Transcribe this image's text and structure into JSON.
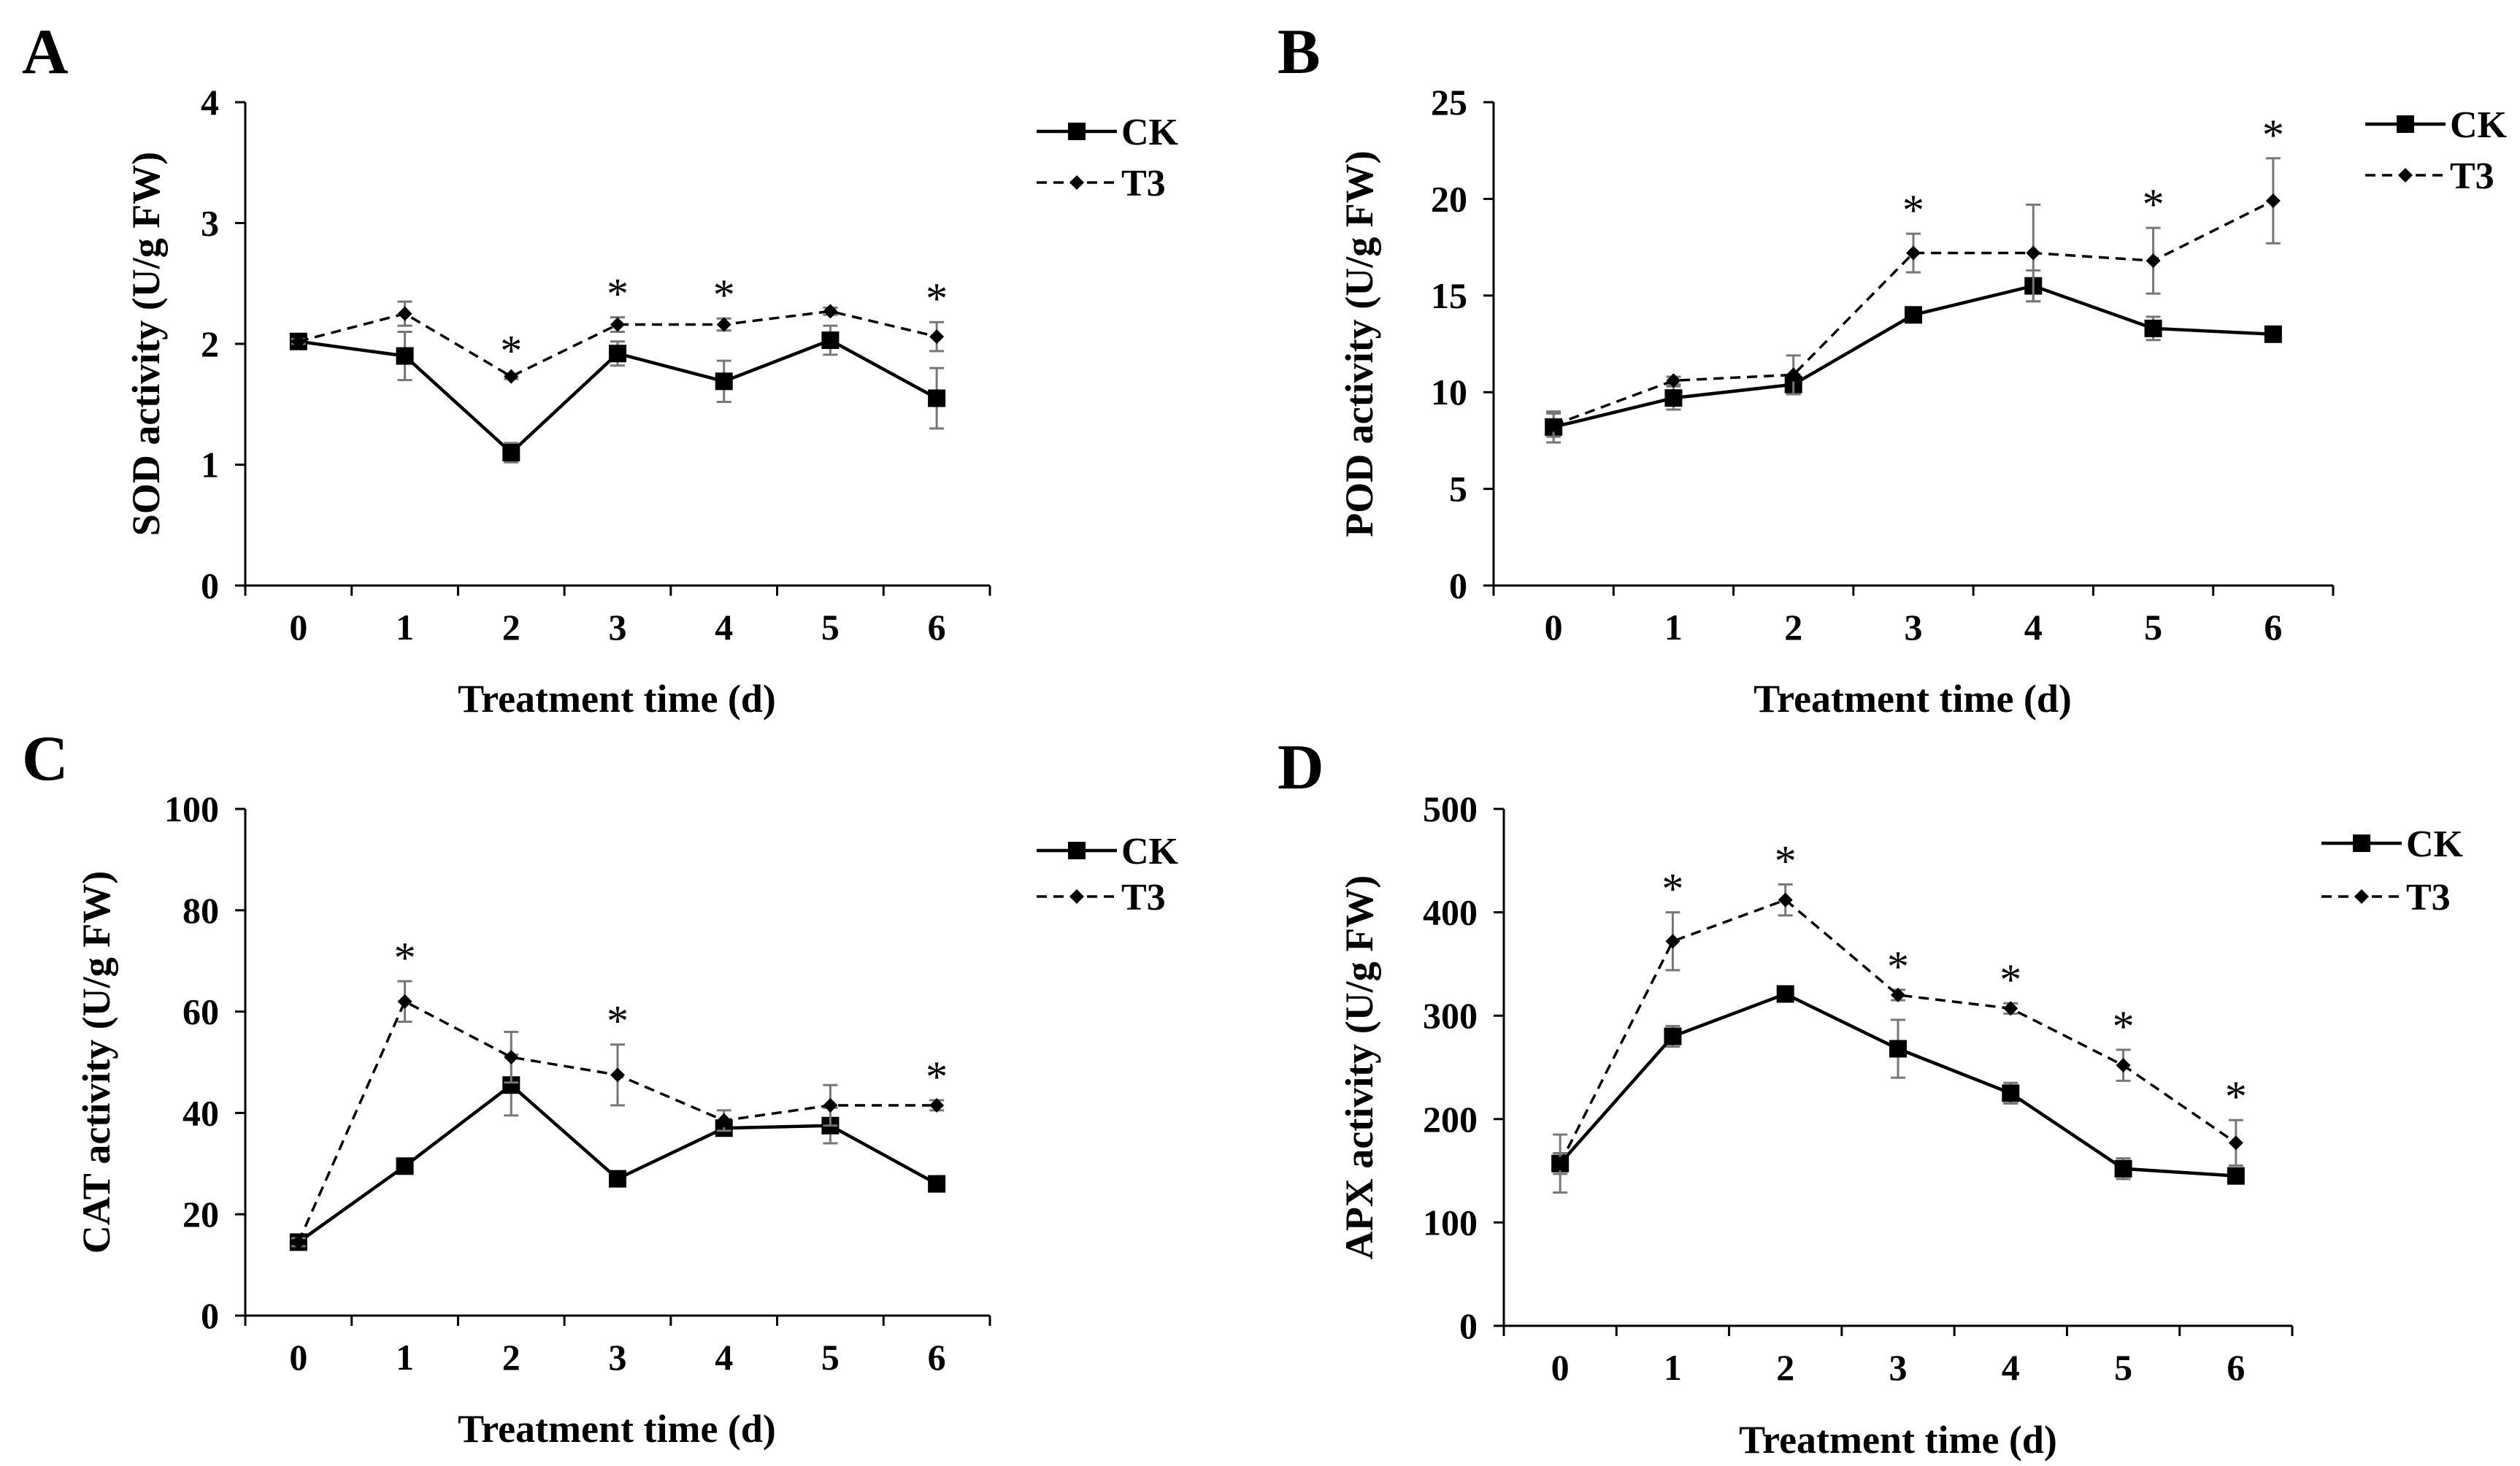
{
  "figure": {
    "x_axis_title": "Treatment time (d)",
    "legend": [
      "CK",
      "T3"
    ],
    "significance_mark": "*"
  },
  "chart_data": [
    {
      "type": "line",
      "panel_label": "A",
      "title": "",
      "xlabel": "Treatment time (d)",
      "ylabel": "SOD activity (U/g FW)",
      "categories": [
        "0",
        "1",
        "2",
        "3",
        "4",
        "5",
        "6"
      ],
      "ylim": [
        0,
        4
      ],
      "yticks": [
        "0",
        "1",
        "2",
        "3",
        "4"
      ],
      "series": [
        {
          "name": "CK",
          "values": [
            2.02,
            1.9,
            1.1,
            1.92,
            1.69,
            2.03,
            1.55
          ],
          "errors": [
            0.02,
            0.2,
            0.08,
            0.1,
            0.17,
            0.12,
            0.25
          ]
        },
        {
          "name": "T3",
          "values": [
            2.02,
            2.25,
            1.73,
            2.16,
            2.16,
            2.27,
            2.06
          ],
          "errors": [
            0.02,
            0.1,
            0.02,
            0.06,
            0.05,
            0.03,
            0.12
          ]
        }
      ],
      "significant": [
        2,
        3,
        4,
        6
      ]
    },
    {
      "type": "line",
      "panel_label": "B",
      "title": "",
      "xlabel": "Treatment time (d)",
      "ylabel": "POD activity (U/g FW)",
      "categories": [
        "0",
        "1",
        "2",
        "3",
        "4",
        "5",
        "6"
      ],
      "ylim": [
        0,
        25
      ],
      "yticks": [
        "0",
        "5",
        "10",
        "15",
        "20",
        "25"
      ],
      "series": [
        {
          "name": "CK",
          "values": [
            8.2,
            9.7,
            10.4,
            14.0,
            15.5,
            13.3,
            13.0
          ],
          "errors": [
            0.8,
            0.6,
            0.5,
            0.2,
            0.8,
            0.6,
            0.2
          ]
        },
        {
          "name": "T3",
          "values": [
            8.3,
            10.6,
            10.9,
            17.2,
            17.2,
            16.8,
            19.9
          ],
          "errors": [
            0.6,
            0.2,
            1.0,
            1.0,
            2.5,
            1.7,
            2.2
          ]
        }
      ],
      "significant": [
        3,
        5,
        6
      ]
    },
    {
      "type": "line",
      "panel_label": "C",
      "title": "",
      "xlabel": "Treatment time (d)",
      "ylabel": "CAT activity (U/g FW)",
      "categories": [
        "0",
        "1",
        "2",
        "3",
        "4",
        "5",
        "6"
      ],
      "ylim": [
        0,
        100
      ],
      "yticks": [
        "0",
        "20",
        "40",
        "60",
        "80",
        "100"
      ],
      "series": [
        {
          "name": "CK",
          "values": [
            14.5,
            29.5,
            45.5,
            27.0,
            37.0,
            37.5,
            26.0
          ],
          "errors": [
            0.8,
            1.0,
            6.0,
            1.0,
            1.2,
            3.5,
            1.0
          ]
        },
        {
          "name": "T3",
          "values": [
            14.5,
            62.0,
            51.0,
            47.5,
            38.5,
            41.5,
            41.5
          ],
          "errors": [
            0.8,
            4.0,
            5.0,
            6.0,
            2.0,
            4.0,
            1.0
          ]
        }
      ],
      "significant": [
        1,
        3,
        6
      ]
    },
    {
      "type": "line",
      "panel_label": "D",
      "title": "",
      "xlabel": "Treatment time (d)",
      "ylabel": "APX activity (U/g FW)",
      "categories": [
        "0",
        "1",
        "2",
        "3",
        "4",
        "5",
        "6"
      ],
      "ylim": [
        0,
        500
      ],
      "yticks": [
        "0",
        "100",
        "200",
        "300",
        "400",
        "500"
      ],
      "series": [
        {
          "name": "CK",
          "values": [
            157,
            280,
            321,
            268,
            225,
            152,
            145
          ],
          "errors": [
            28,
            10,
            5,
            28,
            10,
            10,
            5
          ]
        },
        {
          "name": "T3",
          "values": [
            157,
            372,
            412,
            320,
            307,
            252,
            177
          ],
          "errors": [
            10,
            28,
            15,
            5,
            5,
            15,
            22
          ]
        }
      ],
      "significant": [
        1,
        2,
        3,
        4,
        5,
        6
      ]
    }
  ]
}
